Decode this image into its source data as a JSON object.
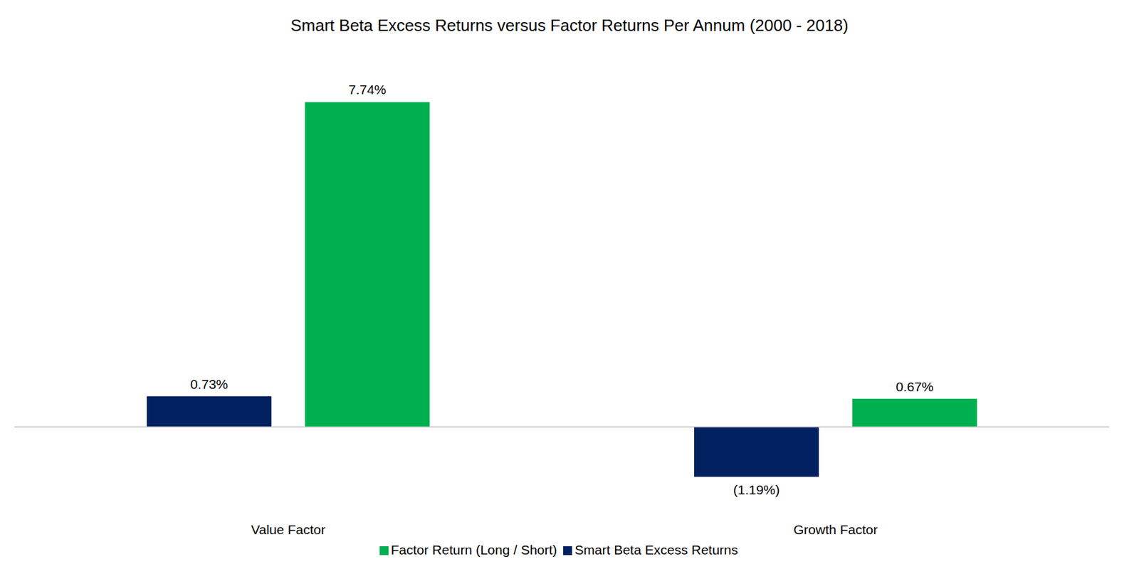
{
  "chart_data": {
    "type": "bar",
    "title": "Smart Beta Excess Returns versus Factor Returns Per Annum (2000 - 2018)",
    "categories": [
      "Value Factor",
      "Growth Factor"
    ],
    "series": [
      {
        "name": "Smart Beta Excess Returns",
        "color": "#002060",
        "values": [
          0.73,
          -1.19
        ],
        "value_labels": [
          "0.73%",
          "(1.19%)"
        ]
      },
      {
        "name": "Factor Return (Long / Short)",
        "color": "#00B050",
        "values": [
          7.74,
          0.67
        ],
        "value_labels": [
          "7.74%",
          "0.67%"
        ]
      }
    ],
    "ylim": [
      -2,
      8.5
    ],
    "grid": false,
    "legend": "bottom",
    "data_labels": true,
    "tick_labels": "x"
  }
}
